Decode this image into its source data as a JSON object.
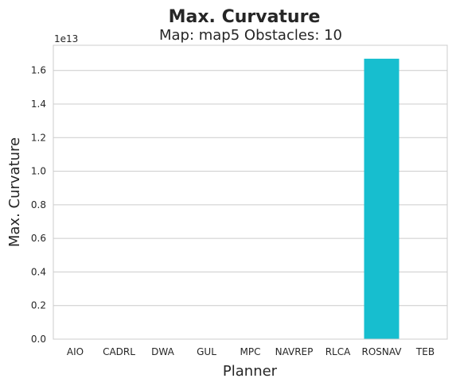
{
  "chart_data": {
    "type": "bar",
    "title": "Max. Curvature",
    "subtitle": "Map: map5 Obstacles: 10",
    "xlabel": "Planner",
    "ylabel": "Max. Curvature",
    "offset_label": "1e13",
    "categories": [
      "AIO",
      "CADRL",
      "DWA",
      "GUL",
      "MPC",
      "NAVREP",
      "RLCA",
      "ROSNAV",
      "TEB"
    ],
    "values": [
      0,
      0,
      0,
      0,
      0,
      0,
      0,
      16700000000000,
      0
    ],
    "ylim": [
      0,
      17500000000000
    ],
    "y_ticks": [
      "0.0",
      "0.2",
      "0.4",
      "0.6",
      "0.8",
      "1.0",
      "1.2",
      "1.4",
      "1.6"
    ],
    "y_tick_values": [
      0,
      2000000000000,
      4000000000000,
      6000000000000,
      8000000000000,
      10000000000000,
      12000000000000,
      14000000000000,
      16000000000000
    ],
    "bar_color": "#17becf",
    "grid": true
  }
}
